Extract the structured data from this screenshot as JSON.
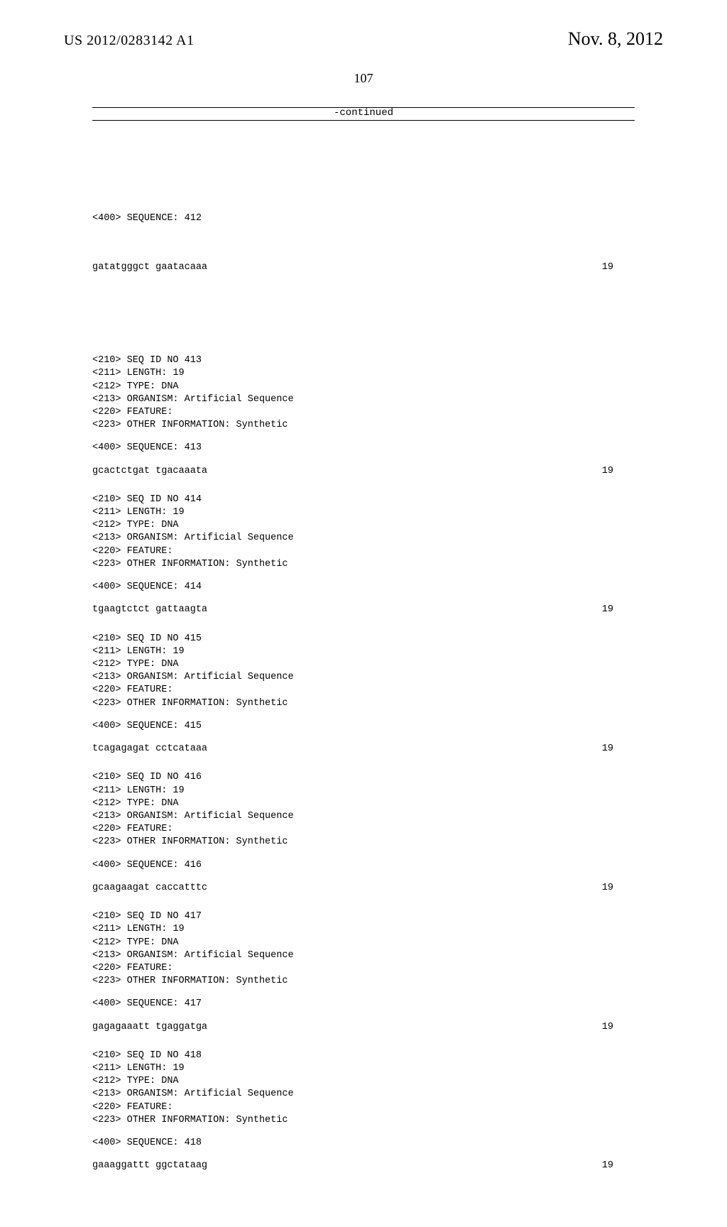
{
  "header": {
    "pub_number": "US 2012/0283142 A1",
    "pub_date": "Nov. 8, 2012",
    "page_number": "107"
  },
  "continued_label": "-continued",
  "first_block": {
    "line400": "<400> SEQUENCE: 412",
    "sequence": "gatatgggct gaatacaaa",
    "seqlen": "19"
  },
  "entries": [
    {
      "headers": [
        "<210> SEQ ID NO 413",
        "<211> LENGTH: 19",
        "<212> TYPE: DNA",
        "<213> ORGANISM: Artificial Sequence",
        "<220> FEATURE:",
        "<223> OTHER INFORMATION: Synthetic"
      ],
      "line400": "<400> SEQUENCE: 413",
      "sequence": "gcactctgat tgacaaata",
      "seqlen": "19"
    },
    {
      "headers": [
        "<210> SEQ ID NO 414",
        "<211> LENGTH: 19",
        "<212> TYPE: DNA",
        "<213> ORGANISM: Artificial Sequence",
        "<220> FEATURE:",
        "<223> OTHER INFORMATION: Synthetic"
      ],
      "line400": "<400> SEQUENCE: 414",
      "sequence": "tgaagtctct gattaagta",
      "seqlen": "19"
    },
    {
      "headers": [
        "<210> SEQ ID NO 415",
        "<211> LENGTH: 19",
        "<212> TYPE: DNA",
        "<213> ORGANISM: Artificial Sequence",
        "<220> FEATURE:",
        "<223> OTHER INFORMATION: Synthetic"
      ],
      "line400": "<400> SEQUENCE: 415",
      "sequence": "tcagagagat cctcataaa",
      "seqlen": "19"
    },
    {
      "headers": [
        "<210> SEQ ID NO 416",
        "<211> LENGTH: 19",
        "<212> TYPE: DNA",
        "<213> ORGANISM: Artificial Sequence",
        "<220> FEATURE:",
        "<223> OTHER INFORMATION: Synthetic"
      ],
      "line400": "<400> SEQUENCE: 416",
      "sequence": "gcaagaagat caccatttc",
      "seqlen": "19"
    },
    {
      "headers": [
        "<210> SEQ ID NO 417",
        "<211> LENGTH: 19",
        "<212> TYPE: DNA",
        "<213> ORGANISM: Artificial Sequence",
        "<220> FEATURE:",
        "<223> OTHER INFORMATION: Synthetic"
      ],
      "line400": "<400> SEQUENCE: 417",
      "sequence": "gagagaaatt tgaggatga",
      "seqlen": "19"
    },
    {
      "headers": [
        "<210> SEQ ID NO 418",
        "<211> LENGTH: 19",
        "<212> TYPE: DNA",
        "<213> ORGANISM: Artificial Sequence",
        "<220> FEATURE:",
        "<223> OTHER INFORMATION: Synthetic"
      ],
      "line400": "<400> SEQUENCE: 418",
      "sequence": "gaaaggattt ggctataag",
      "seqlen": "19"
    }
  ]
}
